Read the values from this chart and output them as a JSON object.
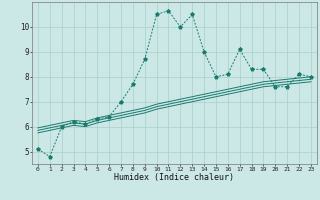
{
  "xlabel": "Humidex (Indice chaleur)",
  "background_color": "#cce8e6",
  "grid_color": "#aacfcc",
  "line_color": "#1a7a6e",
  "x_data": [
    0,
    1,
    2,
    3,
    4,
    5,
    6,
    7,
    8,
    9,
    10,
    11,
    12,
    13,
    14,
    15,
    16,
    17,
    18,
    19,
    20,
    21,
    22,
    23
  ],
  "y_main": [
    5.1,
    4.8,
    6.0,
    6.2,
    6.1,
    6.3,
    6.4,
    7.0,
    7.7,
    8.7,
    10.5,
    10.65,
    10.0,
    10.5,
    9.0,
    8.0,
    8.1,
    9.1,
    8.3,
    8.3,
    7.6,
    7.6,
    8.1,
    8.0
  ],
  "y_line1": [
    5.95,
    6.05,
    6.15,
    6.25,
    6.2,
    6.35,
    6.45,
    6.55,
    6.65,
    6.75,
    6.9,
    7.0,
    7.1,
    7.2,
    7.3,
    7.4,
    7.5,
    7.6,
    7.7,
    7.8,
    7.85,
    7.9,
    7.95,
    8.0
  ],
  "y_line2": [
    5.85,
    5.95,
    6.05,
    6.15,
    6.1,
    6.25,
    6.35,
    6.45,
    6.55,
    6.65,
    6.8,
    6.9,
    7.0,
    7.1,
    7.2,
    7.3,
    7.4,
    7.5,
    7.6,
    7.7,
    7.75,
    7.8,
    7.85,
    7.9
  ],
  "y_line3": [
    5.75,
    5.85,
    5.95,
    6.05,
    6.0,
    6.15,
    6.25,
    6.35,
    6.45,
    6.55,
    6.7,
    6.8,
    6.9,
    7.0,
    7.1,
    7.2,
    7.3,
    7.4,
    7.5,
    7.6,
    7.65,
    7.7,
    7.75,
    7.8
  ],
  "ylim": [
    4.5,
    11.0
  ],
  "yticks": [
    5,
    6,
    7,
    8,
    9,
    10
  ],
  "xlim": [
    -0.5,
    23.5
  ],
  "xticks": [
    0,
    1,
    2,
    3,
    4,
    5,
    6,
    7,
    8,
    9,
    10,
    11,
    12,
    13,
    14,
    15,
    16,
    17,
    18,
    19,
    20,
    21,
    22,
    23
  ]
}
